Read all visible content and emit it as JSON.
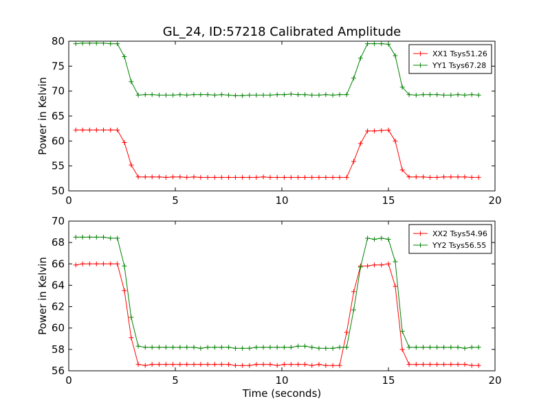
{
  "figure": {
    "title": "GL_24, ID:57218 Calibrated Amplitude"
  },
  "chart_data": [
    {
      "type": "line",
      "title": "GL_24, ID:57218 Calibrated Amplitude",
      "xlabel": "",
      "ylabel": "Power in Kelvin",
      "xlim": [
        0,
        20
      ],
      "ylim": [
        50,
        80
      ],
      "xticks": [
        "0",
        "5",
        "10",
        "15",
        "20"
      ],
      "yticks": [
        "50",
        "55",
        "60",
        "65",
        "70",
        "75",
        "80"
      ],
      "grid": false,
      "legend_position": "top-right",
      "x": [
        0.33,
        0.65,
        0.98,
        1.3,
        1.63,
        1.96,
        2.28,
        2.61,
        2.93,
        3.26,
        3.59,
        3.91,
        4.24,
        4.56,
        4.89,
        5.22,
        5.54,
        5.87,
        6.19,
        6.52,
        6.85,
        7.17,
        7.5,
        7.82,
        8.15,
        8.48,
        8.8,
        9.13,
        9.45,
        9.78,
        10.11,
        10.43,
        10.76,
        11.08,
        11.41,
        11.74,
        12.06,
        12.39,
        12.71,
        13.04,
        13.37,
        13.69,
        14.02,
        14.34,
        14.67,
        15.0,
        15.32,
        15.65,
        15.97,
        16.3,
        16.63,
        16.95,
        17.28,
        17.6,
        17.93,
        18.26,
        18.58,
        18.91,
        19.23
      ],
      "series": [
        {
          "name": "XX1 Tsys51.26",
          "color": "#ff0000",
          "values": [
            62.2,
            62.2,
            62.2,
            62.2,
            62.2,
            62.2,
            62.2,
            59.7,
            55.2,
            52.8,
            52.8,
            52.8,
            52.8,
            52.7,
            52.8,
            52.8,
            52.7,
            52.8,
            52.7,
            52.7,
            52.7,
            52.7,
            52.7,
            52.7,
            52.7,
            52.7,
            52.7,
            52.8,
            52.7,
            52.7,
            52.7,
            52.7,
            52.7,
            52.7,
            52.7,
            52.7,
            52.7,
            52.7,
            52.7,
            52.7,
            55.9,
            59.5,
            62.0,
            62.0,
            62.1,
            62.2,
            60.0,
            54.2,
            52.8,
            52.8,
            52.8,
            52.7,
            52.7,
            52.8,
            52.8,
            52.8,
            52.8,
            52.7,
            52.7
          ]
        },
        {
          "name": "YY1 Tsys67.28",
          "color": "#008000",
          "values": [
            79.5,
            79.6,
            79.6,
            79.6,
            79.6,
            79.5,
            79.5,
            76.9,
            71.9,
            69.2,
            69.3,
            69.3,
            69.2,
            69.2,
            69.2,
            69.3,
            69.2,
            69.3,
            69.3,
            69.3,
            69.2,
            69.3,
            69.2,
            69.1,
            69.1,
            69.2,
            69.2,
            69.2,
            69.2,
            69.3,
            69.3,
            69.4,
            69.3,
            69.3,
            69.2,
            69.2,
            69.3,
            69.2,
            69.3,
            69.3,
            72.6,
            76.6,
            79.5,
            79.5,
            79.5,
            79.4,
            77.1,
            70.8,
            69.3,
            69.2,
            69.3,
            69.3,
            69.3,
            69.2,
            69.2,
            69.3,
            69.2,
            69.3,
            69.2
          ]
        }
      ]
    },
    {
      "type": "line",
      "title": "",
      "xlabel": "Time (seconds)",
      "ylabel": "Power in Kelvin",
      "xlim": [
        0,
        20
      ],
      "ylim": [
        56,
        70
      ],
      "xticks": [
        "0",
        "5",
        "10",
        "15",
        "20"
      ],
      "yticks": [
        "56",
        "58",
        "60",
        "62",
        "64",
        "66",
        "68",
        "70"
      ],
      "grid": false,
      "legend_position": "top-right",
      "x": [
        0.33,
        0.65,
        0.98,
        1.3,
        1.63,
        1.96,
        2.28,
        2.61,
        2.93,
        3.26,
        3.59,
        3.91,
        4.24,
        4.56,
        4.89,
        5.22,
        5.54,
        5.87,
        6.19,
        6.52,
        6.85,
        7.17,
        7.5,
        7.82,
        8.15,
        8.48,
        8.8,
        9.13,
        9.45,
        9.78,
        10.11,
        10.43,
        10.76,
        11.08,
        11.41,
        11.74,
        12.06,
        12.39,
        12.71,
        13.04,
        13.37,
        13.69,
        14.02,
        14.34,
        14.67,
        15.0,
        15.32,
        15.65,
        15.97,
        16.3,
        16.63,
        16.95,
        17.28,
        17.6,
        17.93,
        18.26,
        18.58,
        18.91,
        19.23
      ],
      "series": [
        {
          "name": "XX2 Tsys54.96",
          "color": "#ff0000",
          "values": [
            65.9,
            66.0,
            66.0,
            66.0,
            66.0,
            66.0,
            66.0,
            63.5,
            59.1,
            56.6,
            56.5,
            56.6,
            56.6,
            56.6,
            56.6,
            56.6,
            56.6,
            56.6,
            56.6,
            56.6,
            56.6,
            56.6,
            56.6,
            56.5,
            56.5,
            56.5,
            56.6,
            56.6,
            56.6,
            56.5,
            56.6,
            56.6,
            56.6,
            56.6,
            56.5,
            56.6,
            56.5,
            56.5,
            56.5,
            59.6,
            63.4,
            65.8,
            65.8,
            65.9,
            65.9,
            66.0,
            63.9,
            58.0,
            56.6,
            56.6,
            56.6,
            56.6,
            56.6,
            56.6,
            56.6,
            56.6,
            56.6,
            56.5,
            56.5
          ]
        },
        {
          "name": "YY2 Tsys56.55",
          "color": "#008000",
          "values": [
            68.5,
            68.5,
            68.5,
            68.5,
            68.5,
            68.4,
            68.4,
            65.8,
            61.0,
            58.3,
            58.2,
            58.2,
            58.2,
            58.2,
            58.2,
            58.2,
            58.2,
            58.2,
            58.1,
            58.2,
            58.2,
            58.2,
            58.2,
            58.1,
            58.1,
            58.1,
            58.2,
            58.2,
            58.2,
            58.2,
            58.2,
            58.2,
            58.3,
            58.3,
            58.2,
            58.1,
            58.1,
            58.1,
            58.2,
            58.2,
            61.7,
            65.7,
            68.4,
            68.3,
            68.4,
            68.3,
            66.2,
            59.7,
            58.2,
            58.2,
            58.2,
            58.2,
            58.2,
            58.2,
            58.2,
            58.2,
            58.1,
            58.2,
            58.2
          ]
        }
      ]
    }
  ]
}
